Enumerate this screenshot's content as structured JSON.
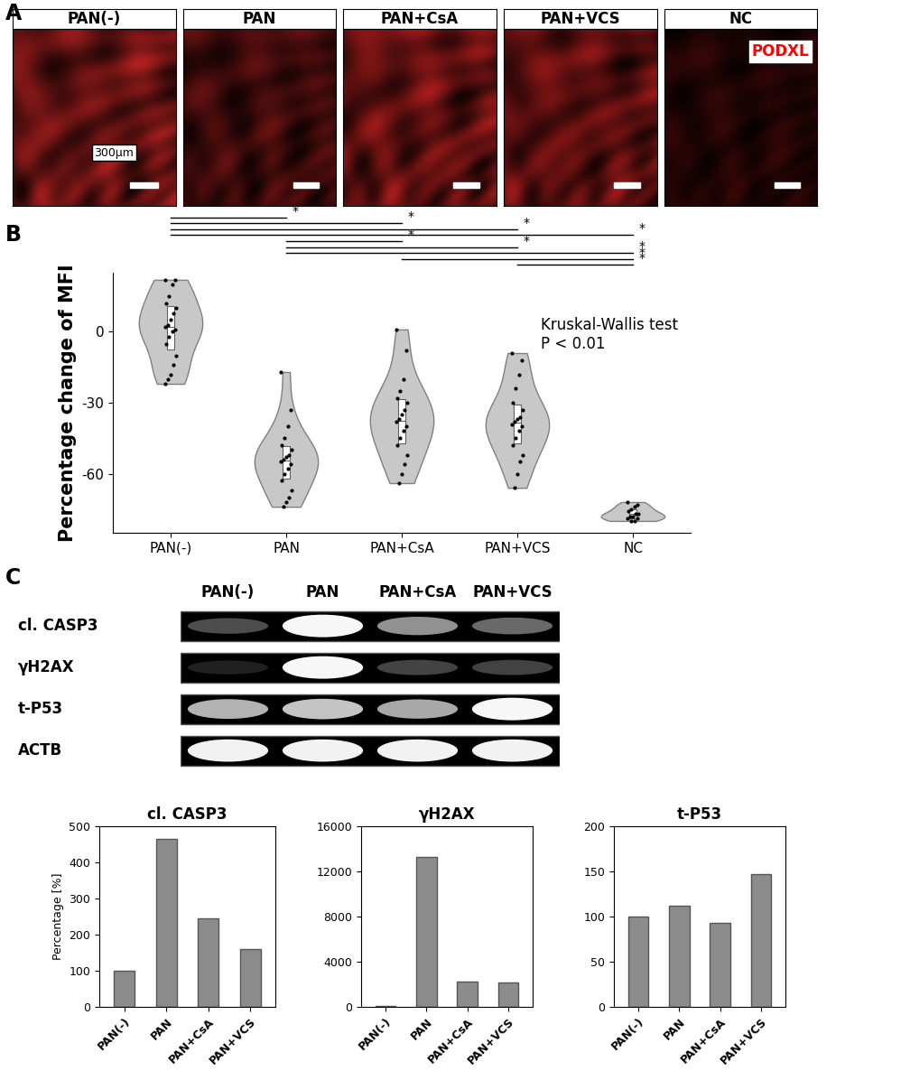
{
  "panel_labels": [
    "A",
    "B",
    "C"
  ],
  "images": {
    "groups": [
      "PAN(-)",
      "PAN",
      "PAN+CsA",
      "PAN+VCS",
      "NC"
    ],
    "colors": [
      "#b02020",
      "#6a1212",
      "#a81c1c",
      "#a01a1a",
      "#3a0808"
    ],
    "channel_label": "PODXL",
    "scale_bar": "300µm"
  },
  "blot": {
    "lanes": [
      "PAN(-)",
      "PAN",
      "PAN+CsA",
      "PAN+VCS"
    ],
    "rows": [
      "cl. CASP3",
      "γH2AX",
      "t-P53",
      "ACTB"
    ]
  },
  "chart_data": [
    {
      "type": "violin",
      "categories": [
        "PAN(-)",
        "PAN",
        "PAN+CsA",
        "PAN+VCS",
        "NC"
      ],
      "values": [
        [
          22,
          22,
          20,
          15,
          12,
          10,
          8,
          5,
          3,
          2,
          1,
          0,
          -2,
          -5,
          -10,
          -14,
          -18,
          -20,
          -22
        ],
        [
          -17,
          -33,
          -40,
          -45,
          -48,
          -50,
          -52,
          -53,
          -54,
          -55,
          -56,
          -58,
          -60,
          -63,
          -67,
          -70,
          -72,
          -74
        ],
        [
          1,
          -8,
          -20,
          -25,
          -28,
          -30,
          -33,
          -35,
          -37,
          -38,
          -40,
          -42,
          -45,
          -48,
          -52,
          -56,
          -60,
          -64
        ],
        [
          -9,
          -12,
          -18,
          -24,
          -30,
          -33,
          -36,
          -37,
          -38,
          -39,
          -40,
          -42,
          -45,
          -48,
          -52,
          -55,
          -60,
          -66
        ],
        [
          -72,
          -73,
          -74,
          -75,
          -76,
          -77,
          -77,
          -78,
          -78,
          -79,
          -79,
          -80,
          -80
        ]
      ],
      "ylabel": "Percentage change of MFI",
      "ylim": [
        -85,
        25
      ],
      "yticks": [
        -60,
        -30,
        0
      ],
      "color": "#c8c8c8",
      "annotation": "Kruskal-Wallis test\nP < 0.01",
      "comparisons": [
        {
          "groups": [
            "PAN(-)",
            "PAN"
          ],
          "label": "*"
        },
        {
          "groups": [
            "PAN(-)",
            "PAN+CsA"
          ],
          "label": "*"
        },
        {
          "groups": [
            "PAN(-)",
            "PAN+VCS"
          ],
          "label": "*"
        },
        {
          "groups": [
            "PAN(-)",
            "NC"
          ],
          "label": "*"
        },
        {
          "groups": [
            "PAN",
            "PAN+CsA"
          ],
          "label": "*"
        },
        {
          "groups": [
            "PAN",
            "PAN+VCS"
          ],
          "label": "*"
        },
        {
          "groups": [
            "PAN",
            "NC"
          ],
          "label": "*"
        },
        {
          "groups": [
            "PAN+CsA",
            "NC"
          ],
          "label": "*"
        },
        {
          "groups": [
            "PAN+VCS",
            "NC"
          ],
          "label": "*"
        }
      ]
    },
    {
      "type": "bar",
      "title": "cl. CASP3",
      "ylabel": "Percentage [%]",
      "categories": [
        "PAN(-)",
        "PAN",
        "PAN+CsA",
        "PAN+VCS"
      ],
      "values": [
        100,
        465,
        245,
        160
      ],
      "color": "#8c8c8c",
      "ylim": [
        0,
        500
      ],
      "yticks": [
        0,
        100,
        200,
        300,
        400,
        500
      ]
    },
    {
      "type": "bar",
      "title": "γH2AX",
      "categories": [
        "PAN(-)",
        "PAN",
        "PAN+CsA",
        "PAN+VCS"
      ],
      "values": [
        100,
        13300,
        2250,
        2150
      ],
      "color": "#8c8c8c",
      "ylim": [
        0,
        16000
      ],
      "yticks": [
        0,
        4000,
        8000,
        12000,
        16000
      ]
    },
    {
      "type": "bar",
      "title": "t-P53",
      "categories": [
        "PAN(-)",
        "PAN",
        "PAN+CsA",
        "PAN+VCS"
      ],
      "values": [
        100,
        112,
        93,
        147
      ],
      "color": "#8c8c8c",
      "ylim": [
        0,
        200
      ],
      "yticks": [
        0,
        50,
        100,
        150,
        200
      ]
    }
  ]
}
